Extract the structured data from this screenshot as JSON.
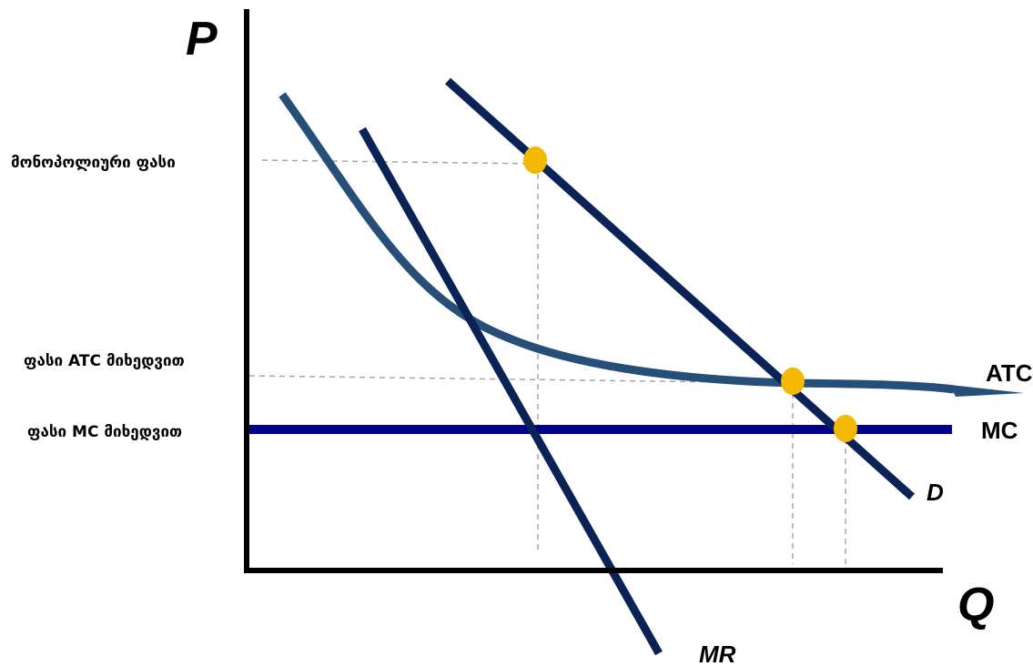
{
  "axes": {
    "y_label": "P",
    "x_label": "Q"
  },
  "curves": {
    "atc": "ATC",
    "mc": "MC",
    "demand": "D",
    "marginal_revenue": "MR"
  },
  "price_labels": {
    "monopoly_price": "მონოპოლიური ფასი",
    "atc_price": "ფასი ATC მიხედვით",
    "mc_price": "ფასი MC მიხედვით"
  },
  "colors": {
    "demand": "#0b2257",
    "marginal_revenue": "#0b2257",
    "atc": "#264f78",
    "mc": "#00008b",
    "axes": "#000000",
    "points": "#f5b800",
    "guides": "#a6a6a6"
  }
}
